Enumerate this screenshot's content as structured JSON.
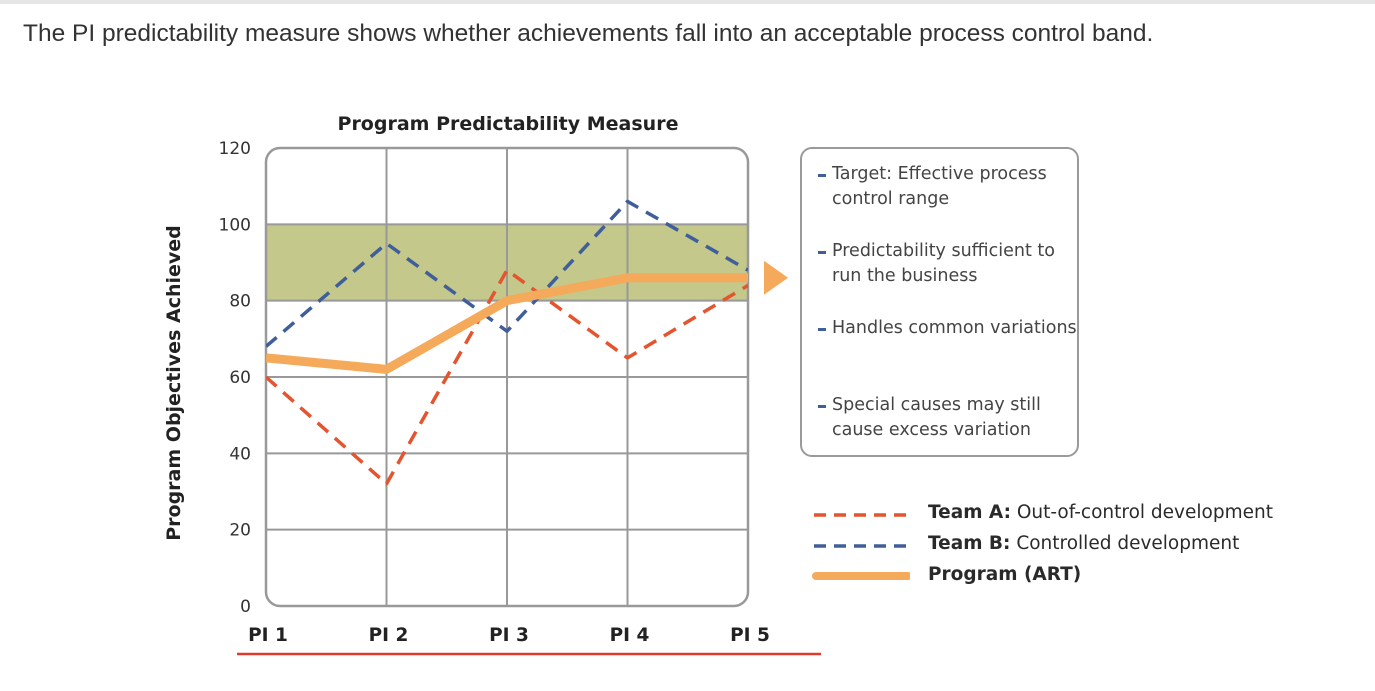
{
  "caption": "The PI predictability measure shows whether achievements fall into an acceptable process control band.",
  "chart_data": {
    "type": "line",
    "title": "Program Predictability Measure",
    "ylabel": "Program Objectives Achieved",
    "xlabel": "",
    "categories": [
      "PI 1",
      "PI 2",
      "PI 3",
      "PI 4",
      "PI 5"
    ],
    "ylim": [
      0,
      120
    ],
    "yticks": [
      0,
      20,
      40,
      60,
      80,
      100,
      120
    ],
    "grid": true,
    "target_band": {
      "low": 80,
      "high": 100,
      "color": "#c4c88a"
    },
    "series": [
      {
        "name": "Team A",
        "values": [
          60,
          32,
          88,
          65,
          84
        ],
        "color": "#e4542f",
        "style": "dashed"
      },
      {
        "name": "Team B",
        "values": [
          68,
          95,
          72,
          106,
          88
        ],
        "color": "#3f5e9a",
        "style": "dashed"
      },
      {
        "name": "Program (ART)",
        "values": [
          65,
          62,
          80,
          86,
          86
        ],
        "color": "#f5a95a",
        "style": "solid"
      }
    ]
  },
  "notes": [
    "Target: Effective process control range",
    "Predictability sufficient to run the business",
    "Handles common variations",
    "Special causes may still cause excess variation"
  ],
  "legend": [
    {
      "name": "Team A:",
      "desc": "Out-of-control development",
      "color": "#e4542f",
      "style": "dashed"
    },
    {
      "name": "Team B:",
      "desc": "Controlled development",
      "color": "#3f5e9a",
      "style": "dashed"
    },
    {
      "name": "Program (ART)",
      "desc": "",
      "color": "#f5a95a",
      "style": "solid"
    }
  ],
  "colors": {
    "frame": "#999999",
    "grid": "#999999",
    "axis_underline": "#e03a2f",
    "arrow": "#f5a95a"
  }
}
